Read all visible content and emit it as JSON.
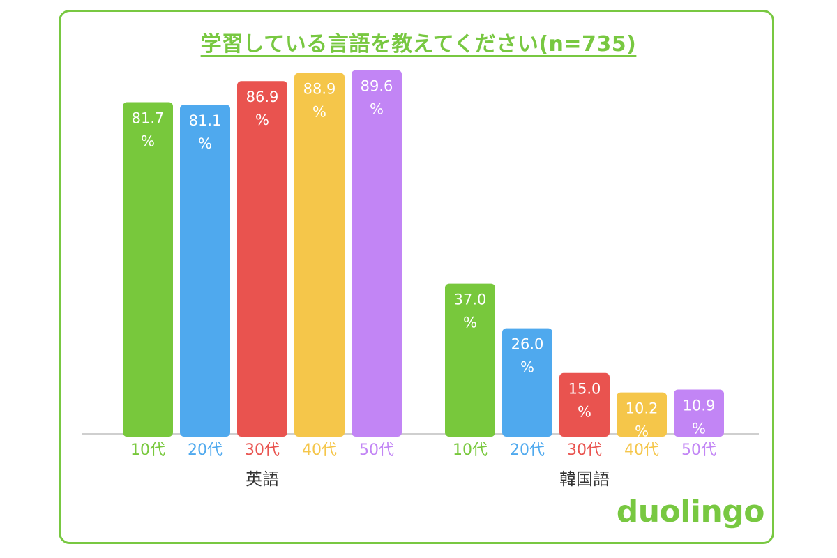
{
  "chart_data": {
    "type": "bar",
    "title": "学習している言語を教えてください(n=735)",
    "categories": [
      "英語",
      "韓国語"
    ],
    "age_groups": [
      "10代",
      "20代",
      "30代",
      "40代",
      "50代"
    ],
    "series": [
      {
        "name": "10代",
        "values": [
          81.7,
          37.0
        ],
        "labels": [
          "81.7\n%",
          "37.0\n%"
        ]
      },
      {
        "name": "20代",
        "values": [
          81.1,
          26.0
        ],
        "labels": [
          "81.1\n%",
          "26.0\n%"
        ]
      },
      {
        "name": "30代",
        "values": [
          86.9,
          15.0
        ],
        "labels": [
          "86.9\n%",
          "15.0\n%"
        ]
      },
      {
        "name": "40代",
        "values": [
          88.9,
          10.2
        ],
        "labels": [
          "88.9\n%",
          "10.2\n%"
        ]
      },
      {
        "name": "50代",
        "values": [
          89.6,
          10.9
        ],
        "labels": [
          "89.6\n%",
          "10.9\n%"
        ]
      }
    ],
    "unit": "%",
    "ylim": [
      0,
      100
    ],
    "grid": false,
    "legend": "none",
    "colors": [
      "#78c83c",
      "#4fa9ee",
      "#e9534f",
      "#f5c64a",
      "#c285f5"
    ]
  },
  "brand": {
    "logo_text": "duolingo",
    "accent_color": "#78c841"
  }
}
